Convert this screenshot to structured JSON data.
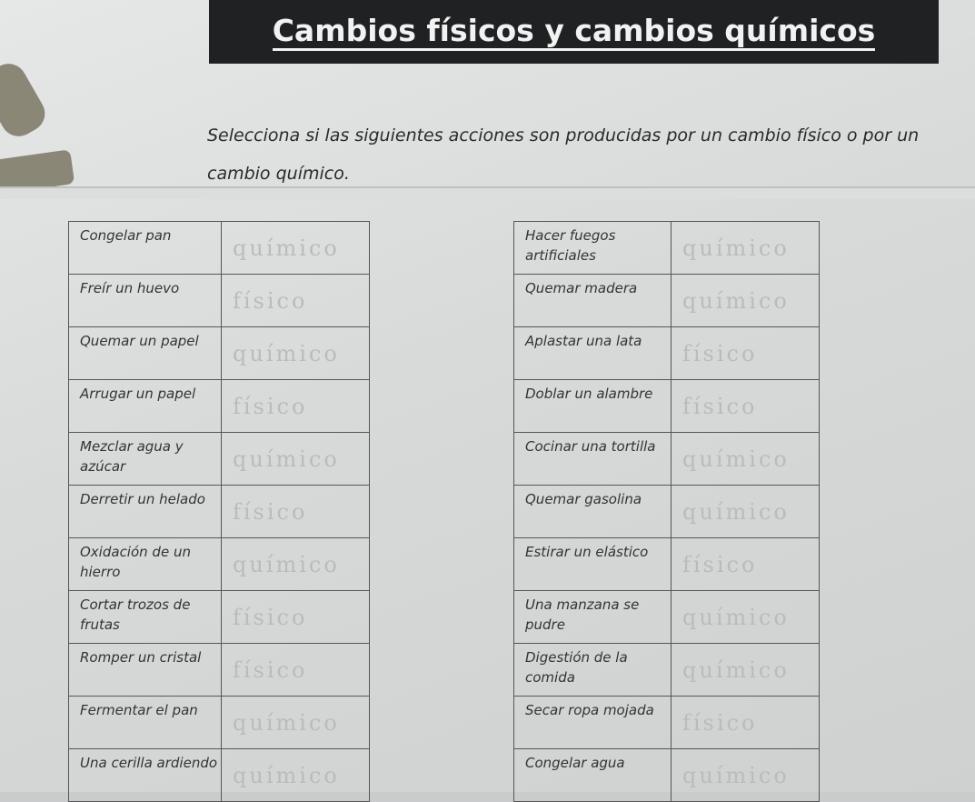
{
  "title": "Cambios físicos y cambios químicos",
  "instruction": "Selecciona si las siguientes acciones son producidas por un cambio físico o por un cambio químico.",
  "left_table": [
    {
      "action": "Congelar pan",
      "answer": "químico"
    },
    {
      "action": "Freír un huevo",
      "answer": "físico"
    },
    {
      "action": "Quemar un papel",
      "answer": "químico"
    },
    {
      "action": "Arrugar un papel",
      "answer": "físico"
    },
    {
      "action": "Mezclar agua y azúcar",
      "answer": "químico"
    },
    {
      "action": "Derretir un helado",
      "answer": "físico"
    },
    {
      "action": "Oxidación de un hierro",
      "answer": "químico"
    },
    {
      "action": "Cortar trozos de frutas",
      "answer": "físico"
    },
    {
      "action": "Romper un cristal",
      "answer": "físico"
    },
    {
      "action": "Fermentar el pan",
      "answer": "químico"
    },
    {
      "action": "Una cerilla ardiendo",
      "answer": "químico"
    }
  ],
  "right_table": [
    {
      "action": "Hacer fuegos artificiales",
      "answer": "químico"
    },
    {
      "action": "Quemar madera",
      "answer": "químico"
    },
    {
      "action": "Aplastar una lata",
      "answer": "físico"
    },
    {
      "action": "Doblar un alambre",
      "answer": "físico"
    },
    {
      "action": "Cocinar una tortilla",
      "answer": "químico"
    },
    {
      "action": "Quemar gasolina",
      "answer": "químico"
    },
    {
      "action": "Estirar un elástico",
      "answer": "físico"
    },
    {
      "action": "Una manzana se pudre",
      "answer": "químico"
    },
    {
      "action": "Digestión de la comida",
      "answer": "químico"
    },
    {
      "action": "Secar ropa mojada",
      "answer": "físico"
    },
    {
      "action": "Congelar agua",
      "answer": "químico"
    }
  ]
}
